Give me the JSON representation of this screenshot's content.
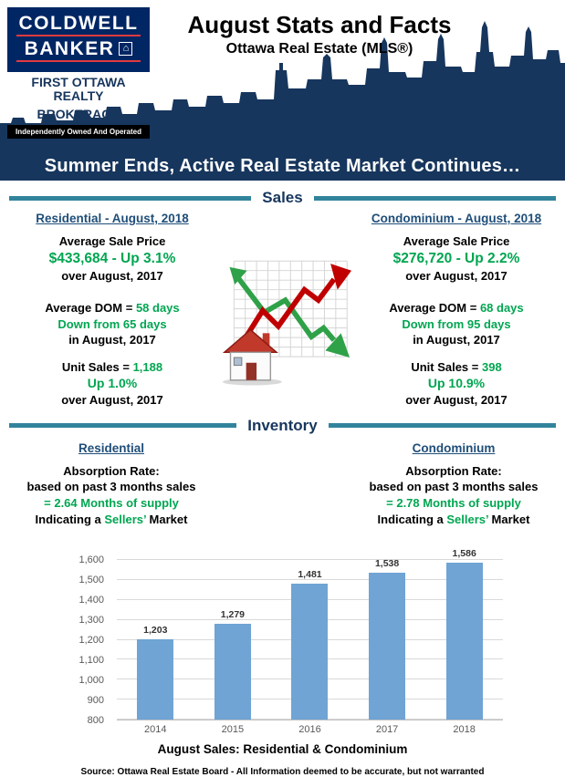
{
  "colors": {
    "navy": "#17365D",
    "heading_blue": "#1F4E79",
    "green": "#00A651",
    "divider_teal": "#31849B",
    "bar_blue": "#6FA4D4",
    "logo_red": "#E03A3E"
  },
  "header": {
    "logo": {
      "line1": "COLDWELL",
      "line2": "BANKER",
      "house_icon": "house-icon",
      "firm1": "FIRST OTTAWA REALTY",
      "firm2": "BROKERAGE",
      "tagline": "Independently Owned And Operated"
    },
    "title": "August Stats and Facts",
    "subtitle": "Ottawa Real Estate (MLS®)"
  },
  "banner": {
    "text": "Summer Ends, Active Real Estate Market Continues…"
  },
  "sections": {
    "sales": "Sales",
    "inventory": "Inventory"
  },
  "sales": {
    "residential": {
      "heading": "Residential - August, 2018",
      "price_label": "Average Sale Price",
      "price_value": "$433,684 - Up 3.1%",
      "price_note": "over August, 2017",
      "dom_prefix": "Average DOM = ",
      "dom_value": "58 days",
      "dom_down": "Down from 65 days",
      "dom_note": "in August, 2017",
      "unit_prefix": "Unit Sales = ",
      "unit_value": "1,188",
      "unit_change": "Up 1.0%",
      "unit_note": "over August, 2017"
    },
    "condominium": {
      "heading": "Condominium - August, 2018",
      "price_label": "Average Sale Price",
      "price_value": "$276,720 - Up 2.2%",
      "price_note": "over August, 2017",
      "dom_prefix": "Average DOM = ",
      "dom_value": "68 days",
      "dom_down": "Down from 95 days",
      "dom_note": "in August, 2017",
      "unit_prefix": "Unit Sales = ",
      "unit_value": "398",
      "unit_change": "Up 10.9%",
      "unit_note": "over August, 2017"
    }
  },
  "inventory": {
    "residential": {
      "heading": "Residential",
      "line1": "Absorption Rate:",
      "line2": "based on past 3 months sales",
      "supply": "= 2.64 Months of supply",
      "ind_prefix": "Indicating a ",
      "ind_highlight": "Sellers’",
      "ind_suffix": " Market"
    },
    "condominium": {
      "heading": "Condominium",
      "line1": "Absorption Rate:",
      "line2": "based on past 3 months sales",
      "supply": "= 2.78 Months of supply",
      "ind_prefix": "Indicating a ",
      "ind_highlight": "Sellers’",
      "ind_suffix": " Market"
    }
  },
  "chart_data": {
    "type": "bar",
    "title": "August Sales: Residential & Condominium",
    "xlabel": "August Sales: Residential & Condominium",
    "ylabel": "",
    "categories": [
      "2014",
      "2015",
      "2016",
      "2017",
      "2018"
    ],
    "values": [
      1203,
      1279,
      1481,
      1538,
      1586
    ],
    "value_labels": [
      "1,203",
      "1,279",
      "1,481",
      "1,538",
      "1,586"
    ],
    "ylim": [
      800,
      1600
    ],
    "ytick_step": 100,
    "ytick_labels": [
      "800",
      "900",
      "1,000",
      "1,100",
      "1,200",
      "1,300",
      "1,400",
      "1,500",
      "1,600"
    ],
    "bar_color": "#6FA4D4",
    "grid": true,
    "legend": "none"
  },
  "footer": {
    "source": "Source: Ottawa Real Estate Board - All Information deemed to be accurate, but not warranted"
  }
}
